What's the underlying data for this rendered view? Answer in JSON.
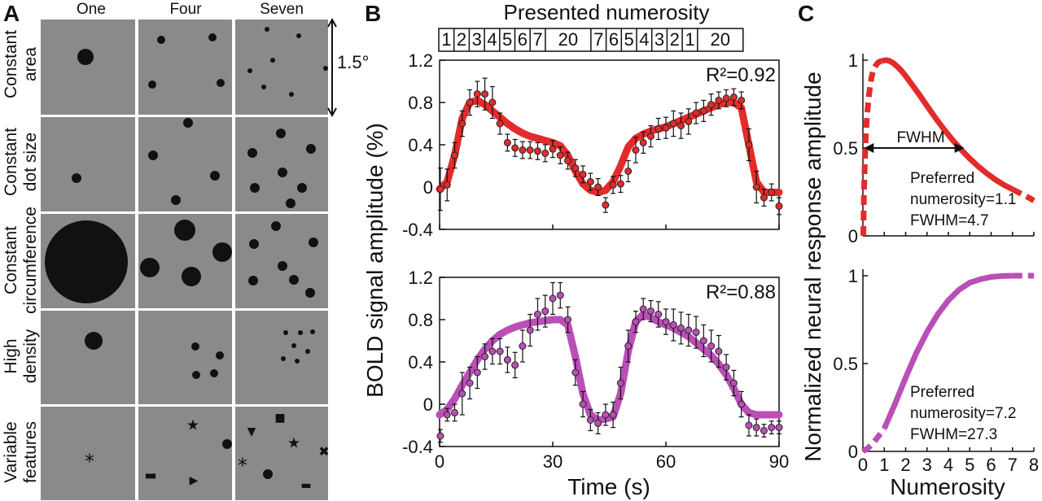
{
  "panel_labels": {
    "a": "A",
    "b": "B",
    "c": "C"
  },
  "panelA": {
    "columns": [
      "One",
      "Four",
      "Seven"
    ],
    "rows": [
      {
        "line1": "Constant",
        "line2": "area"
      },
      {
        "line1": "Constant",
        "line2": "dot size"
      },
      {
        "line1": "Constant",
        "line2": "circumference"
      },
      {
        "line1": "High",
        "line2": "density"
      },
      {
        "line1": "Variable",
        "line2": "features"
      }
    ],
    "scale_label": "1.5°",
    "colors": {
      "tile": "#8a8a8a",
      "dot": "#111111"
    },
    "features": {
      "asterisk": "*",
      "star": "★",
      "cross": "✖",
      "triangle_down": "▼",
      "triangle_right": "▶",
      "square": "■",
      "dash": "▬"
    }
  },
  "panelB": {
    "title": "Presented numerosity",
    "sequence": [
      "1",
      "2",
      "3",
      "4",
      "5",
      "6",
      "7",
      "20",
      "7",
      "6",
      "5",
      "4",
      "3",
      "2",
      "1",
      "20"
    ],
    "colors": {
      "top": "#e32b2b",
      "bottom": "#b94fb7"
    },
    "chart_data": [
      {
        "type": "line",
        "r2_label": "R²=0.92",
        "xlabel": "Time (s)",
        "ylabel": "BOLD signal amplitude (%)",
        "xlim": [
          0,
          90
        ],
        "ylim": [
          -0.4,
          1.2
        ],
        "xticks": [
          0,
          30,
          60,
          90
        ],
        "yticks": [
          "-0.4",
          "0",
          "0.4",
          "0.8",
          "1.2"
        ],
        "series": [
          {
            "kind": "data",
            "x": [
              0.2,
              2,
              4,
              6,
              8,
              10,
              12,
              14,
              16,
              18,
              20,
              22,
              24,
              26,
              28,
              30,
              32,
              34,
              36,
              38,
              40,
              42,
              44,
              46,
              48,
              50,
              52,
              54,
              56,
              58,
              60,
              62,
              64,
              66,
              68,
              70,
              72,
              74,
              76,
              78,
              80,
              82,
              84,
              86,
              88,
              90
            ],
            "y": [
              -0.02,
              0.02,
              0.3,
              0.6,
              0.8,
              0.88,
              0.88,
              0.8,
              0.6,
              0.42,
              0.37,
              0.35,
              0.35,
              0.34,
              0.32,
              0.36,
              0.3,
              0.25,
              0.18,
              0.12,
              0.05,
              0.0,
              -0.17,
              0.02,
              0.03,
              0.15,
              0.35,
              0.42,
              0.48,
              0.55,
              0.56,
              0.6,
              0.58,
              0.62,
              0.7,
              0.72,
              0.78,
              0.82,
              0.84,
              0.85,
              0.82,
              0.4,
              0.0,
              -0.1,
              -0.05,
              -0.18
            ],
            "err": [
              0.2,
              0.15,
              0.12,
              0.12,
              0.12,
              0.12,
              0.15,
              0.15,
              0.1,
              0.08,
              0.08,
              0.08,
              0.08,
              0.08,
              0.08,
              0.08,
              0.08,
              0.08,
              0.08,
              0.08,
              0.08,
              0.08,
              0.07,
              0.08,
              0.08,
              0.1,
              0.12,
              0.1,
              0.1,
              0.1,
              0.1,
              0.12,
              0.12,
              0.12,
              0.1,
              0.1,
              0.1,
              0.08,
              0.08,
              0.08,
              0.08,
              0.15,
              0.15,
              0.08,
              0.08,
              0.08
            ]
          },
          {
            "kind": "fit",
            "x": [
              0,
              2,
              4,
              6,
              8,
              10,
              12,
              14,
              16,
              18,
              20,
              22,
              24,
              26,
              28,
              30,
              32,
              34,
              36,
              38,
              40,
              42,
              44,
              46,
              48,
              50,
              52,
              54,
              56,
              58,
              60,
              62,
              64,
              66,
              68,
              70,
              72,
              74,
              76,
              78,
              80,
              82,
              84,
              86,
              88,
              90
            ],
            "y": [
              -0.02,
              0.05,
              0.3,
              0.65,
              0.8,
              0.82,
              0.78,
              0.72,
              0.66,
              0.6,
              0.55,
              0.51,
              0.48,
              0.46,
              0.44,
              0.42,
              0.39,
              0.3,
              0.15,
              0.03,
              -0.03,
              -0.05,
              -0.03,
              0.05,
              0.2,
              0.38,
              0.46,
              0.5,
              0.53,
              0.55,
              0.57,
              0.6,
              0.63,
              0.66,
              0.69,
              0.72,
              0.75,
              0.78,
              0.8,
              0.8,
              0.75,
              0.4,
              0.05,
              -0.05,
              -0.05,
              -0.05
            ]
          }
        ]
      },
      {
        "type": "line",
        "r2_label": "R²=0.88",
        "xlabel": "Time (s)",
        "ylabel": "BOLD signal amplitude (%)",
        "xlim": [
          0,
          90
        ],
        "ylim": [
          -0.4,
          1.2
        ],
        "xticks": [
          0,
          30,
          60,
          90
        ],
        "yticks": [
          "-0.4",
          "0",
          "0.4",
          "0.8",
          "1.2"
        ],
        "series": [
          {
            "kind": "data",
            "x": [
              0.2,
              2,
              4,
              6,
              8,
              10,
              12,
              14,
              16,
              18,
              20,
              22,
              24,
              26,
              28,
              30,
              32,
              34,
              36,
              38,
              40,
              42,
              44,
              46,
              48,
              50,
              52,
              54,
              56,
              58,
              60,
              62,
              64,
              66,
              68,
              70,
              72,
              74,
              76,
              78,
              80,
              82,
              84,
              86,
              88,
              90
            ],
            "y": [
              -0.3,
              -0.1,
              -0.08,
              0.1,
              0.2,
              0.3,
              0.45,
              0.5,
              0.5,
              0.42,
              0.37,
              0.55,
              0.7,
              0.85,
              0.88,
              1.0,
              1.03,
              0.8,
              0.3,
              0.0,
              -0.15,
              -0.18,
              -0.1,
              -0.1,
              0.2,
              0.55,
              0.78,
              0.9,
              0.88,
              0.85,
              0.78,
              0.75,
              0.72,
              0.7,
              0.68,
              0.6,
              0.55,
              0.5,
              0.35,
              0.2,
              0.0,
              -0.2,
              -0.22,
              -0.25,
              -0.22,
              -0.22
            ],
            "err": [
              0.06,
              0.06,
              0.08,
              0.2,
              0.15,
              0.15,
              0.12,
              0.12,
              0.12,
              0.12,
              0.12,
              0.15,
              0.15,
              0.15,
              0.15,
              0.15,
              0.12,
              0.12,
              0.12,
              0.12,
              0.1,
              0.1,
              0.1,
              0.12,
              0.15,
              0.15,
              0.1,
              0.1,
              0.1,
              0.12,
              0.12,
              0.15,
              0.15,
              0.15,
              0.15,
              0.15,
              0.15,
              0.15,
              0.12,
              0.12,
              0.12,
              0.1,
              0.08,
              0.06,
              0.06,
              0.06
            ]
          },
          {
            "kind": "fit",
            "x": [
              0,
              2,
              4,
              6,
              8,
              10,
              12,
              14,
              16,
              18,
              20,
              22,
              24,
              26,
              28,
              30,
              32,
              34,
              36,
              38,
              40,
              42,
              44,
              46,
              48,
              50,
              52,
              54,
              56,
              58,
              60,
              62,
              64,
              66,
              68,
              70,
              72,
              74,
              76,
              78,
              80,
              82,
              84,
              86,
              88,
              90
            ],
            "y": [
              -0.1,
              -0.05,
              0.05,
              0.18,
              0.3,
              0.42,
              0.52,
              0.6,
              0.66,
              0.7,
              0.73,
              0.75,
              0.77,
              0.78,
              0.79,
              0.8,
              0.8,
              0.75,
              0.45,
              0.1,
              -0.1,
              -0.15,
              -0.14,
              -0.12,
              0.1,
              0.5,
              0.78,
              0.85,
              0.82,
              0.78,
              0.75,
              0.72,
              0.68,
              0.64,
              0.58,
              0.52,
              0.46,
              0.38,
              0.28,
              0.15,
              0.0,
              -0.08,
              -0.1,
              -0.1,
              -0.1,
              -0.1
            ]
          }
        ]
      }
    ]
  },
  "panelC": {
    "xlabel": "Numerosity",
    "ylabel": "Normalized neural response amplitude",
    "xticks": [
      "0",
      "1",
      "2",
      "3",
      "4",
      "5",
      "6",
      "7",
      "8"
    ],
    "yticks": [
      "0",
      "0.5",
      "1"
    ],
    "colors": {
      "top": "#e32b2b",
      "bottom": "#b94fb7"
    },
    "fwhm_label": "FWHM",
    "chart_data": [
      {
        "type": "line",
        "xlim": [
          0,
          8
        ],
        "ylim": [
          0,
          1
        ],
        "preferred_label": "Preferred",
        "numerosity_label": "numerosity=1.1",
        "fwhm_value_label": "FWHM=4.7",
        "fwhm_range": [
          0.05,
          4.75
        ],
        "series": [
          {
            "kind": "solid",
            "x": [
              0.9,
              1.0,
              1.1,
              1.2,
              1.4,
              1.6,
              1.8,
              2.0,
              2.3,
              2.6,
              3.0,
              3.4,
              3.8,
              4.2,
              4.6,
              5.0,
              5.4,
              5.8,
              6.2,
              6.6,
              7.0
            ],
            "y": [
              0.995,
              0.999,
              1.0,
              0.998,
              0.985,
              0.965,
              0.94,
              0.91,
              0.86,
              0.81,
              0.74,
              0.67,
              0.605,
              0.545,
              0.49,
              0.44,
              0.395,
              0.355,
              0.32,
              0.29,
              0.265
            ]
          },
          {
            "kind": "dashed-low",
            "x": [
              0.02,
              0.05,
              0.1,
              0.15,
              0.2,
              0.3,
              0.4,
              0.5,
              0.6,
              0.7,
              0.8,
              0.9
            ],
            "y": [
              0.0,
              0.25,
              0.45,
              0.6,
              0.7,
              0.82,
              0.9,
              0.95,
              0.97,
              0.985,
              0.993,
              0.995
            ]
          },
          {
            "kind": "dashed-high",
            "x": [
              7.0,
              7.4,
              7.8,
              8.0
            ],
            "y": [
              0.265,
              0.24,
              0.215,
              0.2
            ]
          }
        ]
      },
      {
        "type": "line",
        "xlim": [
          0,
          8
        ],
        "ylim": [
          0,
          1
        ],
        "preferred_label": "Preferred",
        "numerosity_label": "numerosity=7.2",
        "fwhm_value_label": "FWHM=27.3",
        "series": [
          {
            "kind": "solid",
            "x": [
              1.0,
              1.5,
              2.0,
              2.5,
              3.0,
              3.5,
              4.0,
              4.5,
              5.0,
              5.5,
              6.0,
              6.5,
              7.0
            ],
            "y": [
              0.13,
              0.27,
              0.42,
              0.56,
              0.68,
              0.78,
              0.86,
              0.92,
              0.96,
              0.98,
              0.993,
              0.998,
              1.0
            ]
          },
          {
            "kind": "dashed-low",
            "x": [
              0.0,
              0.25,
              0.5,
              0.75,
              1.0
            ],
            "y": [
              0.0,
              0.02,
              0.05,
              0.09,
              0.13
            ]
          },
          {
            "kind": "dashed-high",
            "x": [
              7.0,
              7.5,
              8.0
            ],
            "y": [
              1.0,
              1.0,
              1.0
            ]
          }
        ]
      }
    ]
  }
}
